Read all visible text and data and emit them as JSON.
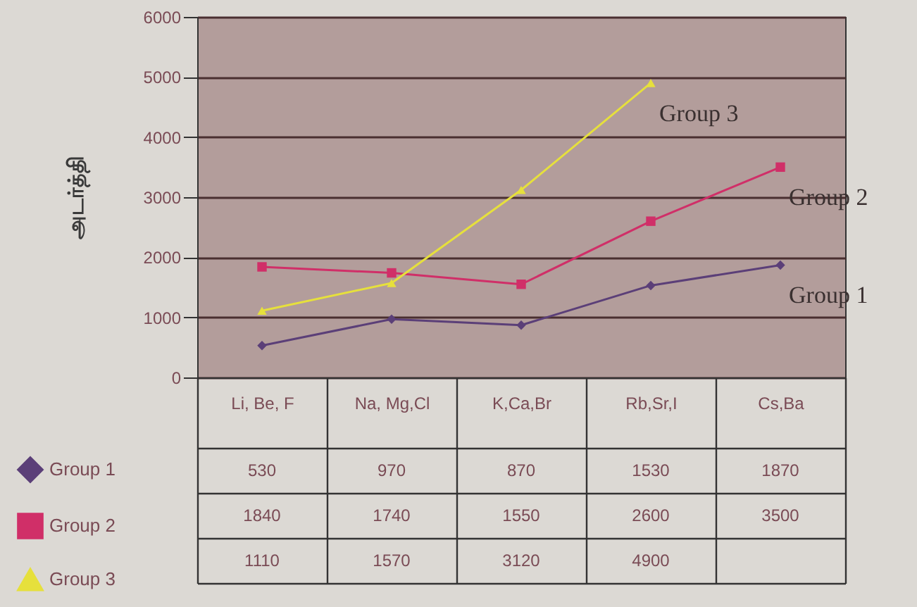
{
  "chart_data": {
    "type": "line",
    "ylabel": "அடர்த்தி",
    "categories": [
      "Li, Be, F",
      "Na, Mg,Cl",
      "K,Ca,Br",
      "Rb,Sr,I",
      "Cs,Ba"
    ],
    "series": [
      {
        "name": "Group 1",
        "color": "#5b3f78",
        "marker": "diamond",
        "values": [
          530,
          970,
          870,
          1530,
          1870
        ]
      },
      {
        "name": "Group 2",
        "color": "#d02f68",
        "marker": "square",
        "values": [
          1840,
          1740,
          1550,
          2600,
          3500
        ]
      },
      {
        "name": "Group 3",
        "color": "#e6e03c",
        "marker": "triangle",
        "values": [
          1110,
          1570,
          3120,
          4900,
          null
        ]
      }
    ],
    "ylim": [
      0,
      6000
    ],
    "yticks": [
      0,
      1000,
      2000,
      3000,
      4000,
      5000,
      6000
    ],
    "grid": "y",
    "legend": "bottom left",
    "data_labels": true
  }
}
